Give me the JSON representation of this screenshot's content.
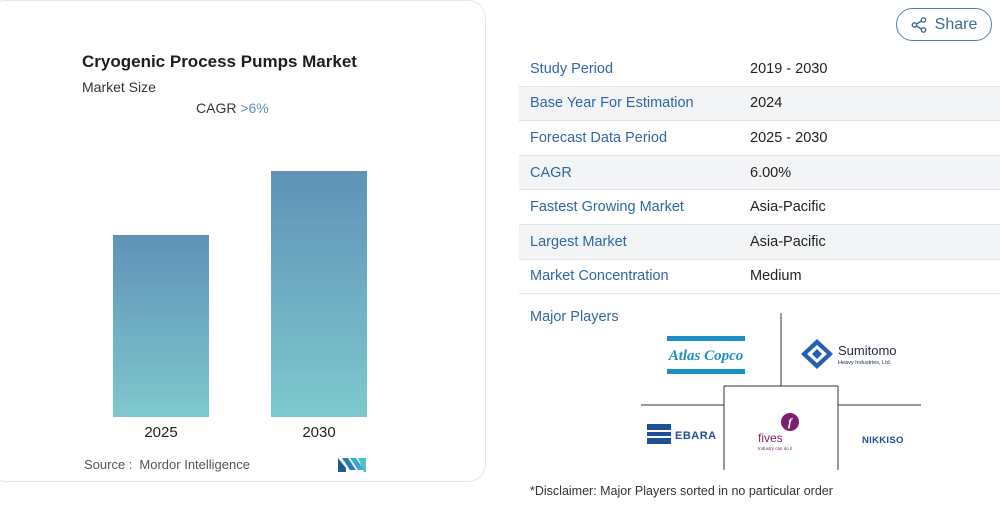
{
  "header": {
    "share_label": "Share"
  },
  "chart": {
    "title": "Cryogenic Process Pumps Market",
    "subtitle": "Market Size",
    "cagr_label": "CAGR",
    "cagr_value": ">6%",
    "source_label": "Source :",
    "source_name": "Mordor Intelligence"
  },
  "chart_data": {
    "type": "bar",
    "categories": [
      "2025",
      "2030"
    ],
    "values": [
      0.74,
      1.0
    ],
    "title": "Cryogenic Process Pumps Market",
    "subtitle": "Market Size",
    "xlabel": "",
    "ylabel": "",
    "ylim": [
      0,
      1.0
    ],
    "grid": false,
    "legend": "none",
    "colors": {
      "top": "#5f92b7",
      "bottom": "#7ec9ce"
    }
  },
  "info_rows": [
    {
      "label": "Study Period",
      "value": "2019 - 2030"
    },
    {
      "label": "Base Year For Estimation",
      "value": "2024"
    },
    {
      "label": "Forecast Data Period",
      "value": "2025 - 2030"
    },
    {
      "label": "CAGR",
      "value": "6.00%"
    },
    {
      "label": "Fastest Growing Market",
      "value": "Asia-Pacific"
    },
    {
      "label": "Largest Market",
      "value": "Asia-Pacific"
    },
    {
      "label": "Market Concentration",
      "value": "Medium"
    }
  ],
  "players": {
    "title": "Major Players",
    "logos": {
      "atlas": "Atlas Copco",
      "sumitomo_name": "Sumitomo",
      "sumitomo_sub": "Heavy Industries, Ltd.",
      "ebara": "EBARA",
      "fives": "fives",
      "fives_tag": "Industry can do it",
      "nikkiso": "NIKKISO"
    }
  },
  "disclaimer": "*Disclaimer: Major Players sorted in no particular order",
  "colors": {
    "accent": "#2f67a6",
    "share_border": "#5a7fa6"
  }
}
